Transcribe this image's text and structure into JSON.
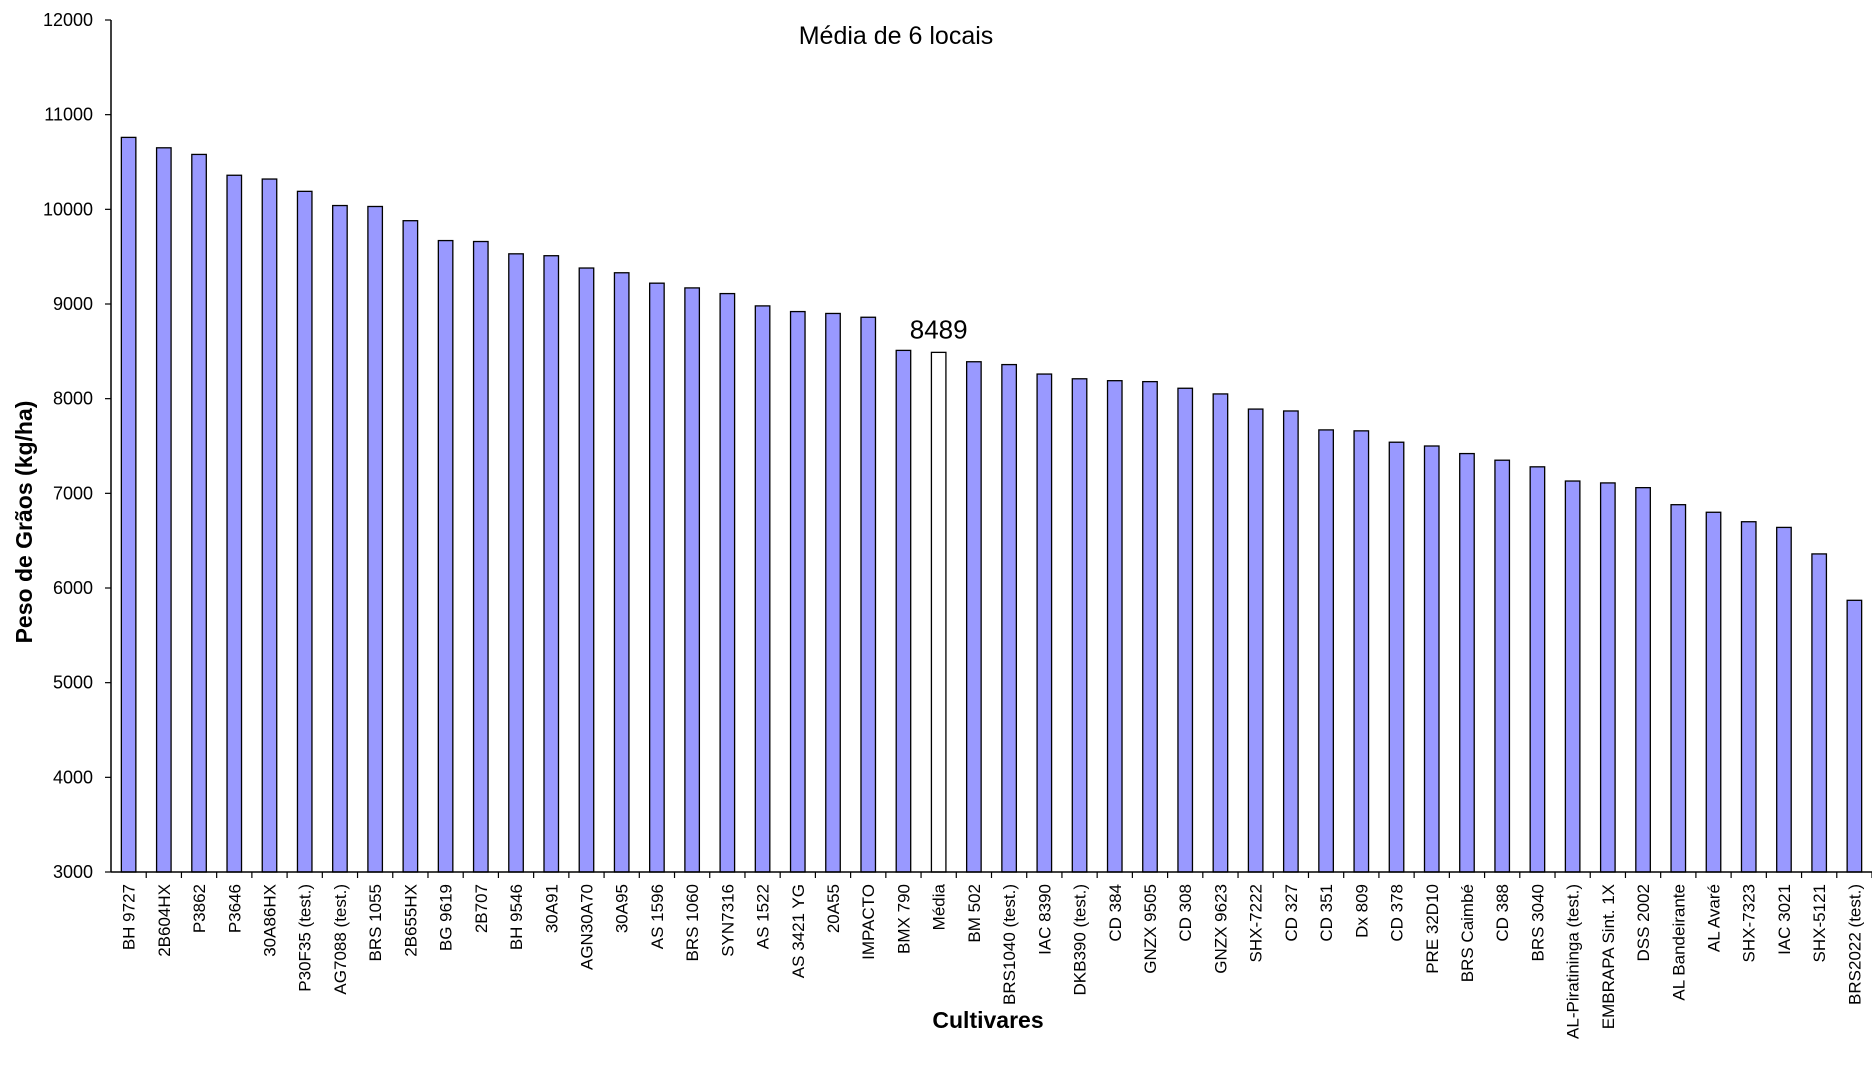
{
  "chart_data": {
    "type": "bar",
    "title": "Média de 6 locais",
    "xlabel": "Cultivares",
    "ylabel": "Peso de Grãos (kg/ha)",
    "ylim": [
      3000,
      12000
    ],
    "yticks": [
      3000,
      4000,
      5000,
      6000,
      7000,
      8000,
      9000,
      10000,
      11000,
      12000
    ],
    "grid": false,
    "legend": "none",
    "bar_color": "#9999ff",
    "highlight_color": "#ffffff",
    "highlight_category": "Média",
    "annotation": "8489",
    "categories": [
      "BH 9727",
      "2B604HX",
      "P3862",
      "P3646",
      "30A86HX",
      "P30F35  (test.)",
      "AG7088  (test.)",
      "BRS 1055",
      "2B655HX",
      "BG 9619",
      "2B707",
      "BH 9546",
      "30A91",
      "AGN30A70",
      "30A95",
      "AS 1596",
      "BRS 1060",
      "SYN7316",
      "AS 1522",
      "AS 3421 YG",
      "20A55",
      "IMPACTO",
      "BMX 790",
      "Média",
      "BM 502",
      "BRS1040 (test.)",
      "IAC 8390",
      "DKB390 (test.)",
      "CD 384",
      "GNZX 9505",
      "CD 308",
      "GNZX 9623",
      "SHX-7222",
      "CD 327",
      "CD 351",
      "Dx 809",
      "CD 378",
      "PRE 32D10",
      "BRS Caimbé",
      "CD 388",
      "BRS 3040",
      "AL-Piratininga  (test.)",
      "EMBRAPA Sint. 1X",
      "DSS 2002",
      "AL Bandeirante",
      "AL Avaré",
      "SHX-7323",
      "IAC 3021",
      "SHX-5121",
      "BRS2022  (test.)"
    ],
    "values": [
      10760,
      10650,
      10580,
      10360,
      10320,
      10190,
      10040,
      10030,
      9880,
      9670,
      9660,
      9530,
      9510,
      9380,
      9330,
      9220,
      9170,
      9110,
      8980,
      8920,
      8900,
      8860,
      8510,
      8489,
      8390,
      8360,
      8260,
      8210,
      8190,
      8180,
      8110,
      8050,
      7890,
      7870,
      7670,
      7660,
      7540,
      7500,
      7420,
      7350,
      7280,
      7130,
      7110,
      7060,
      6880,
      6800,
      6700,
      6640,
      6360,
      5870
    ]
  }
}
